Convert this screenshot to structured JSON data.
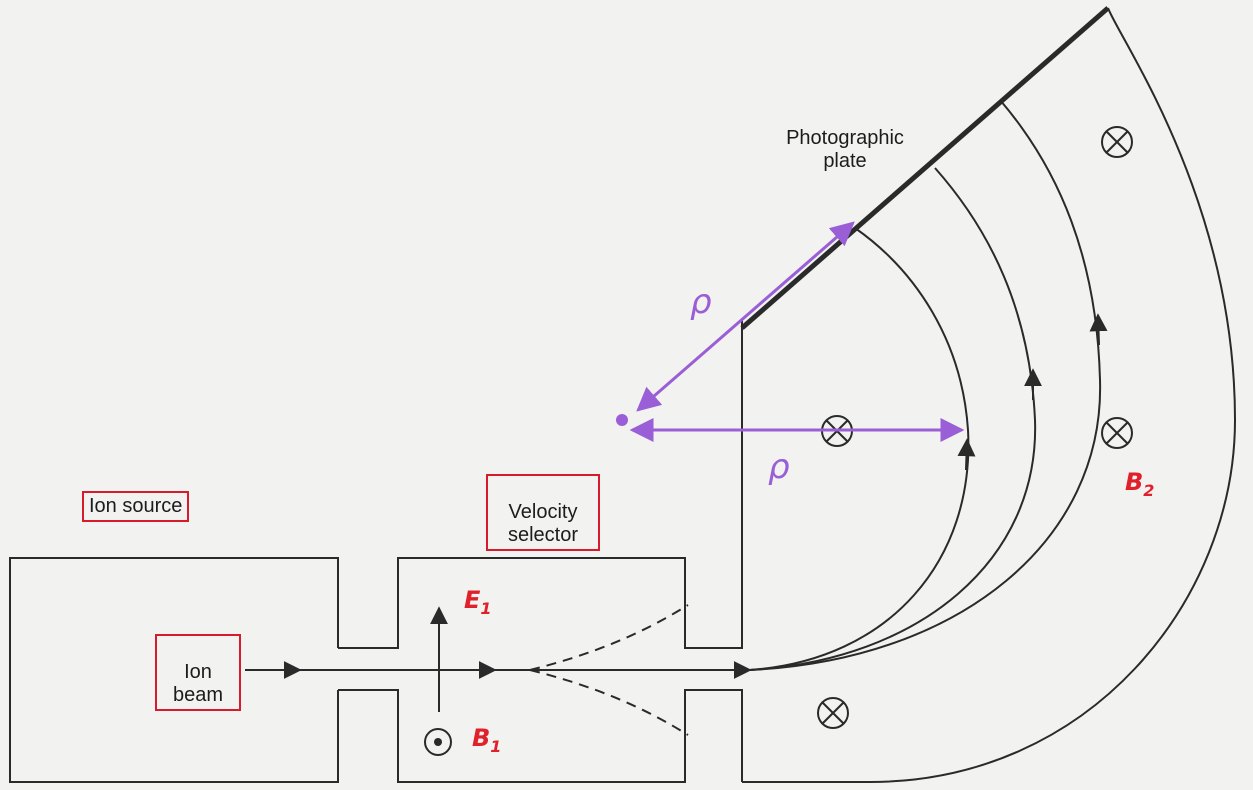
{
  "labels": {
    "ion_source": "Ion source",
    "velocity_selector": "Velocity\nselector",
    "ion_beam": "Ion\nbeam",
    "photographic_plate": "Photographic\nplate",
    "e1": "E",
    "e1_sub": "1",
    "b1": "B",
    "b1_sub": "1",
    "b2": "B",
    "b2_sub": "2",
    "rho_upper": "ρ",
    "rho_lower": "ρ"
  },
  "colors": {
    "ink": "#2a2a2a",
    "annotation_box": "#d81b2a",
    "annotation_text": "#e0202a",
    "radius_marker": "#9a5fd6",
    "background": "#f2f2f0"
  },
  "icons": {
    "field_into_page": "circle-cross-icon",
    "field_out_of_page": "circle-dot-icon"
  }
}
